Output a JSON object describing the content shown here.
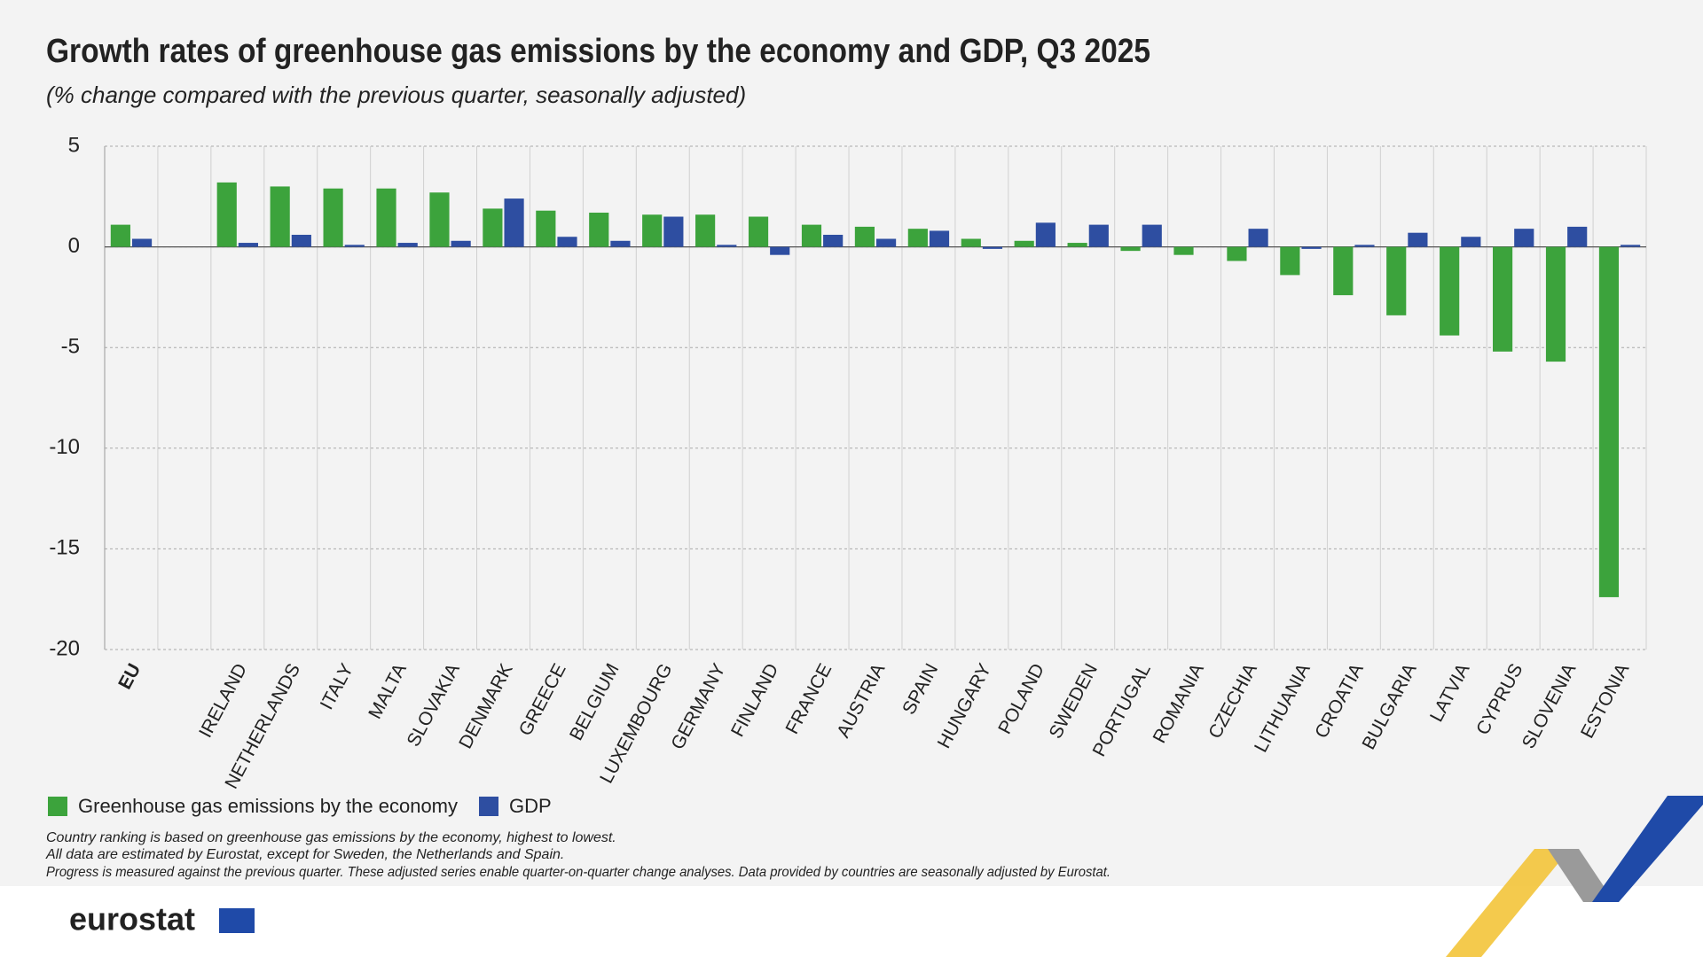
{
  "chart_data": {
    "type": "bar",
    "title": "Growth rates of greenhouse gas emissions by the economy and GDP, Q3 2025",
    "subtitle": "(% change compared with the previous quarter, seasonally adjusted)",
    "categories": [
      "EU",
      null,
      "IRELAND",
      "NETHERLANDS",
      "ITALY",
      "MALTA",
      "SLOVAKIA",
      "DENMARK",
      "GREECE",
      "BELGIUM",
      "LUXEMBOURG",
      "GERMANY",
      "FINLAND",
      "FRANCE",
      "AUSTRIA",
      "SPAIN",
      "HUNGARY",
      "POLAND",
      "SWEDEN",
      "PORTUGAL",
      "ROMANIA",
      "CZECHIA",
      "LITHUANIA",
      "CROATIA",
      "BULGARIA",
      "LATVIA",
      "CYPRUS",
      "SLOVENIA",
      "ESTONIA"
    ],
    "series": [
      {
        "name": "Greenhouse gas emissions by the economy",
        "color": "#3ca33c",
        "values": [
          1.1,
          null,
          3.2,
          3.0,
          2.9,
          2.9,
          2.7,
          1.9,
          1.8,
          1.7,
          1.6,
          1.6,
          1.5,
          1.1,
          1.0,
          0.9,
          0.4,
          0.3,
          0.2,
          -0.2,
          -0.4,
          -0.7,
          -1.4,
          -2.4,
          -3.4,
          -4.4,
          -5.2,
          -5.7,
          -17.4
        ]
      },
      {
        "name": "GDP",
        "color": "#2e4ea1",
        "values": [
          0.4,
          null,
          0.2,
          0.6,
          0.1,
          0.2,
          0.3,
          2.4,
          0.5,
          0.3,
          1.5,
          0.1,
          -0.4,
          0.6,
          0.4,
          0.8,
          -0.1,
          1.2,
          1.1,
          1.1,
          0,
          0.9,
          -0.1,
          0.1,
          0.7,
          0.5,
          0.9,
          1.0,
          0.1
        ]
      }
    ],
    "ylim": [
      -20,
      5
    ],
    "yticks": [
      -20,
      -15,
      -10,
      -5,
      0,
      5
    ],
    "grid": true,
    "notes": [
      "Country ranking is based on greenhouse gas emissions by the economy, highest to lowest.",
      "All data are estimated by Eurostat, except for Sweden, the Netherlands and Spain.",
      "Progress is measured against the previous quarter. These adjusted series enable quarter-on-quarter change analyses. Data provided by countries are seasonally adjusted by Eurostat."
    ],
    "logo": "eurostat"
  }
}
